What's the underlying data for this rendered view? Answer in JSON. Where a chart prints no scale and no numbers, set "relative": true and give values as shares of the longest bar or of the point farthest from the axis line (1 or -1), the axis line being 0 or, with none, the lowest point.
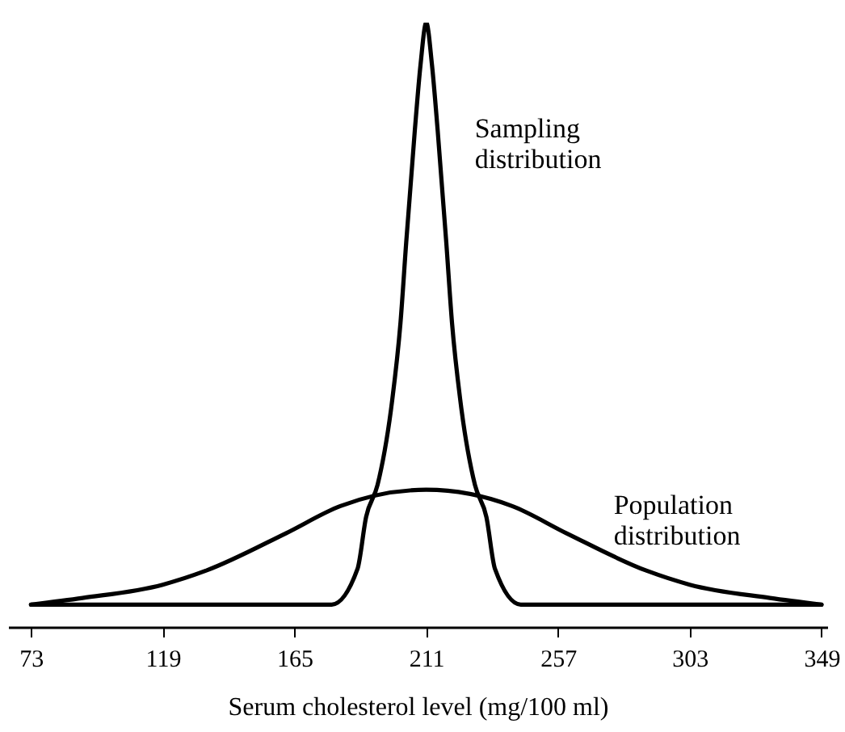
{
  "chart_data": {
    "type": "line",
    "relative": true,
    "xlabel": "Serum cholesterol level (mg/100 ml)",
    "xlim": [
      65,
      351
    ],
    "xticks": [
      73,
      119,
      165,
      211,
      257,
      303,
      349
    ],
    "grid": false,
    "marker": "none",
    "line_style": "solid",
    "series": [
      {
        "name": "Sampling\ndistribution",
        "color": "#000000",
        "x": [
          73,
          178,
          187,
          190,
          194,
          199,
          202,
          204,
          207,
          209,
          211,
          213,
          215,
          218,
          220,
          223,
          228,
          232,
          235,
          244,
          349
        ],
        "values": [
          0.037,
          0.037,
          0.096,
          0.182,
          0.235,
          0.371,
          0.503,
          0.636,
          0.821,
          0.93,
          1,
          0.93,
          0.821,
          0.636,
          0.503,
          0.371,
          0.235,
          0.182,
          0.096,
          0.037,
          0.037
        ]
      },
      {
        "name": "Population\ndistribution",
        "color": "#000000",
        "x": [
          73,
          91,
          119,
          134,
          162,
          181,
          211,
          241,
          260,
          288,
          303,
          331,
          349
        ],
        "values": [
          0.037,
          0.048,
          0.07,
          0.093,
          0.155,
          0.2,
          0.227,
          0.2,
          0.155,
          0.093,
          0.07,
          0.048,
          0.037
        ]
      }
    ]
  }
}
